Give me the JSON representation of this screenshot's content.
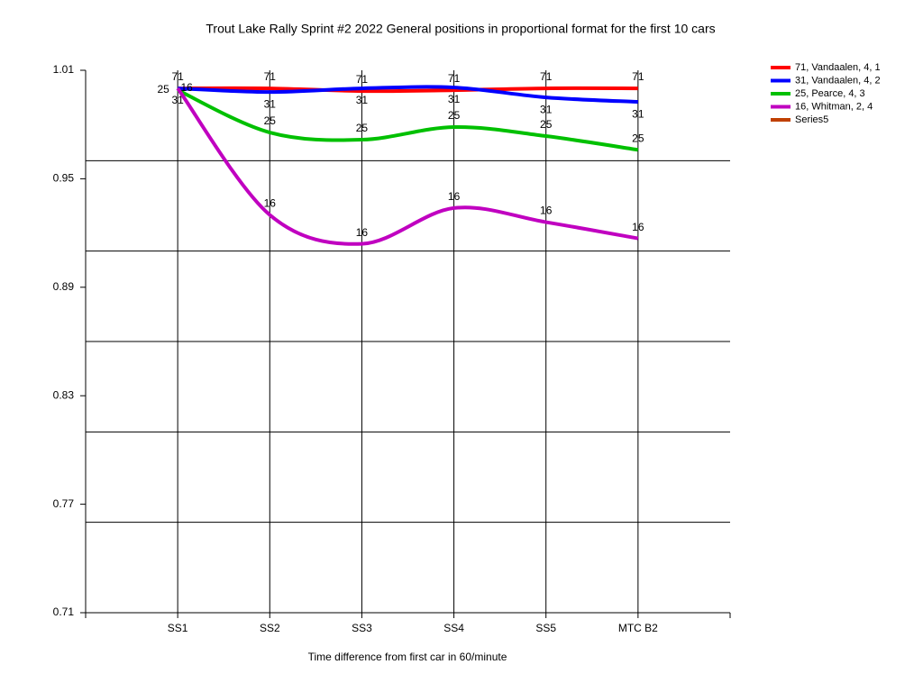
{
  "chart_data": {
    "type": "line",
    "title": "Trout Lake Rally Sprint #2 2022  General positions in proportional format for the first 10 cars",
    "x_label": "Time difference from first car in 60/minute",
    "categories": [
      "SS1",
      "SS2",
      "SS3",
      "SS4",
      "SS5",
      "MTC B2"
    ],
    "series": [
      {
        "name": "71, Vandaalen, 4, 1",
        "color": "#ff0000",
        "point_label": "71",
        "values": [
          1.0,
          1.0,
          0.9985,
          0.999,
          1.0,
          1.0
        ]
      },
      {
        "name": "31, Vandaalen, 4, 2",
        "color": "#0000ff",
        "point_label": "31",
        "values": [
          1.0,
          0.998,
          1.0,
          1.0005,
          0.995,
          0.9925
        ]
      },
      {
        "name": "25, Pearce, 4, 3",
        "color": "#00c000",
        "point_label": "25",
        "values": [
          0.999,
          0.9756,
          0.9716,
          0.9786,
          0.9736,
          0.966
        ]
      },
      {
        "name": "16, Whitman, 2, 4",
        "color": "#c000c0",
        "point_label": "16",
        "values": [
          1.0,
          0.93,
          0.914,
          0.9338,
          0.926,
          0.917
        ]
      },
      {
        "name": "Series5",
        "color": "#c04000",
        "values": [
          null,
          null,
          null,
          null,
          null,
          null
        ]
      }
    ],
    "ylim": [
      0.71,
      1.01
    ],
    "yticks": [
      1.01,
      0.95,
      0.89,
      0.83,
      0.77,
      0.71
    ],
    "ygrid": [
      0.96,
      0.91,
      0.86,
      0.81,
      0.76
    ],
    "grid": true,
    "legend": "right",
    "smooth": true
  }
}
